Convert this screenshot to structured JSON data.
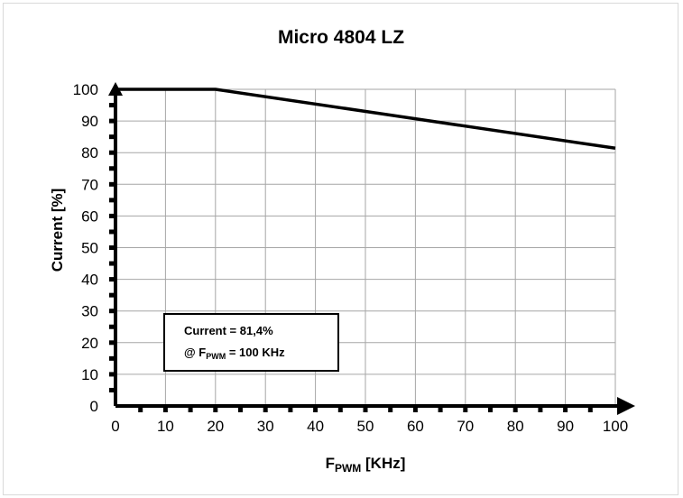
{
  "chart_data": {
    "type": "line",
    "title": "Micro 4804  LZ",
    "xlabel": "F",
    "xlabel_sub": "PWM",
    "xlabel_unit": " [KHz]",
    "ylabel": "Current [%]",
    "xlim": [
      0,
      100
    ],
    "ylim": [
      0,
      100
    ],
    "x_ticks": [
      0,
      10,
      20,
      30,
      40,
      50,
      60,
      70,
      80,
      90,
      100
    ],
    "y_ticks": [
      0,
      10,
      20,
      30,
      40,
      50,
      60,
      70,
      80,
      90,
      100
    ],
    "grid": true,
    "series": [
      {
        "x": [
          0,
          20,
          100
        ],
        "y": [
          100,
          100,
          81.4
        ]
      }
    ],
    "annotation": {
      "line1": "Current = 81,4%",
      "line2_prefix": "@ F",
      "line2_sub": "PWM",
      "line2_suffix": " = 100 KHz"
    },
    "colors": {
      "grid": "#a6a6a6",
      "axis": "#000000",
      "line": "#000000"
    }
  }
}
